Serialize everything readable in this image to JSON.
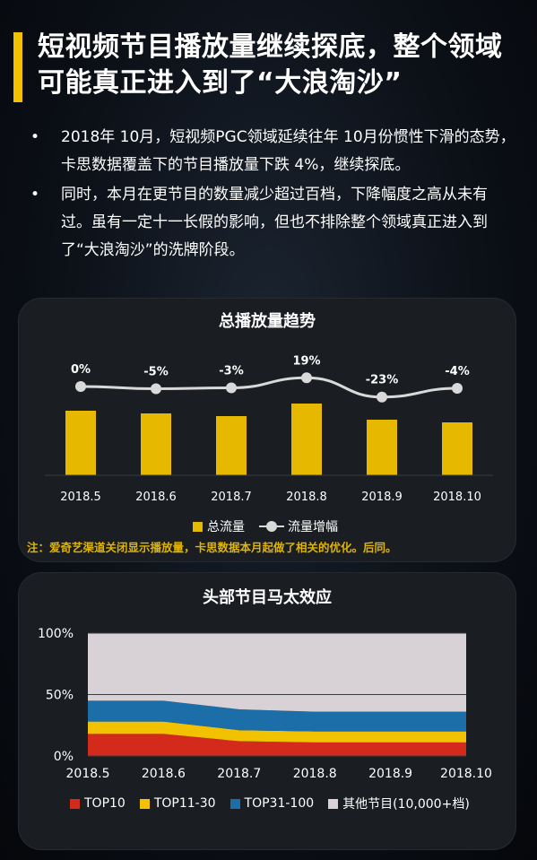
{
  "header": {
    "title": "短视频节目播放量继续探底，整个领域可能真正进入到了“大浪淘沙”"
  },
  "bullets": [
    "2018年 10月，短视频PGC领域延续往年 10月份惯性下滑的态势，卡思数据覆盖下的节目播放量下跌 4%，继续探底。",
    "同时，本月在更节目的数量减少超过百档，下降幅度之高从未有过。虽有一定十一长假的影响，但也不排除整个领域真正进入到了“大浪淘沙”的洗牌阶段。"
  ],
  "bullet_marker": "•",
  "colors": {
    "accent": "#f2c200",
    "bar": "#e6b800",
    "line": "#d9d9d9",
    "top10": "#d42a1c",
    "top11_30": "#f2c200",
    "top31_100": "#1b6ea8",
    "other": "#d8d1d6"
  },
  "chart_data": [
    {
      "type": "bar",
      "title": "总播放量趋势",
      "categories": [
        "2018.5",
        "2018.6",
        "2018.7",
        "2018.8",
        "2018.9",
        "2018.10"
      ],
      "series": [
        {
          "name": "总流量",
          "type": "bar",
          "values": [
            72,
            69,
            66,
            80,
            62,
            59
          ]
        },
        {
          "name": "流量增幅",
          "type": "line",
          "values": [
            0,
            -5,
            -3,
            19,
            -23,
            -4
          ],
          "labels": [
            "0%",
            "-5%",
            "-3%",
            "19%",
            "-23%",
            "-4%"
          ]
        }
      ],
      "note": "注：爱奇艺渠道关闭显示播放量，卡思数据本月起做了相关的优化。后同。",
      "legend": "bottom-center"
    },
    {
      "type": "area",
      "title": "头部节目马太效应",
      "x": [
        "2018.5",
        "2018.6",
        "2018.7",
        "2018.8",
        "2018.9",
        "2018.10"
      ],
      "yticks": [
        "100%",
        "50%",
        "0%"
      ],
      "ylim": [
        0,
        100
      ],
      "series": [
        {
          "name": "TOP10",
          "values": [
            18,
            18,
            12,
            11,
            11,
            11
          ]
        },
        {
          "name": "TOP11-30",
          "values": [
            10,
            10,
            9,
            9,
            9,
            9
          ]
        },
        {
          "name": "TOP31-100",
          "values": [
            17,
            17,
            17,
            16,
            16,
            16
          ]
        },
        {
          "name": "其他节目(10,000+档)",
          "values": [
            55,
            55,
            62,
            64,
            64,
            64
          ]
        }
      ],
      "legend": "bottom"
    }
  ]
}
